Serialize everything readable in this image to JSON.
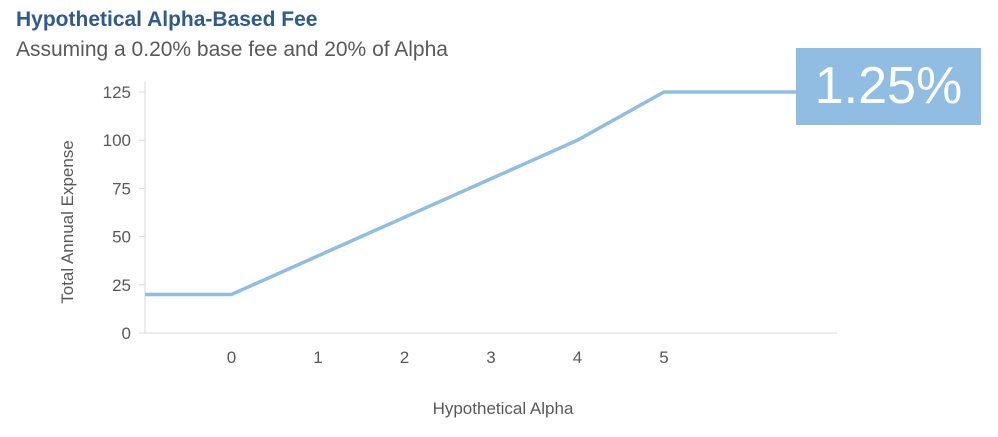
{
  "chart_data": {
    "type": "line",
    "title": "Hypothetical Alpha-Based Fee",
    "subtitle": "Assuming a 0.20% base fee and 20% of Alpha",
    "xlabel": "Hypothetical Alpha",
    "ylabel": "Total Annual Expense",
    "x_ticks": [
      "0",
      "1",
      "2",
      "3",
      "4",
      "5"
    ],
    "y_ticks": [
      "0",
      "25",
      "50",
      "75",
      "100",
      "125"
    ],
    "xlim": [
      -1,
      7
    ],
    "ylim": [
      0,
      125
    ],
    "series": [
      {
        "color": "#92bde2",
        "x": [
          -1,
          0,
          1,
          2,
          3,
          4,
          5,
          7
        ],
        "y": [
          20,
          20,
          40,
          60,
          80,
          100,
          125,
          125
        ]
      }
    ],
    "annotation": "1.25%",
    "grid": false
  }
}
